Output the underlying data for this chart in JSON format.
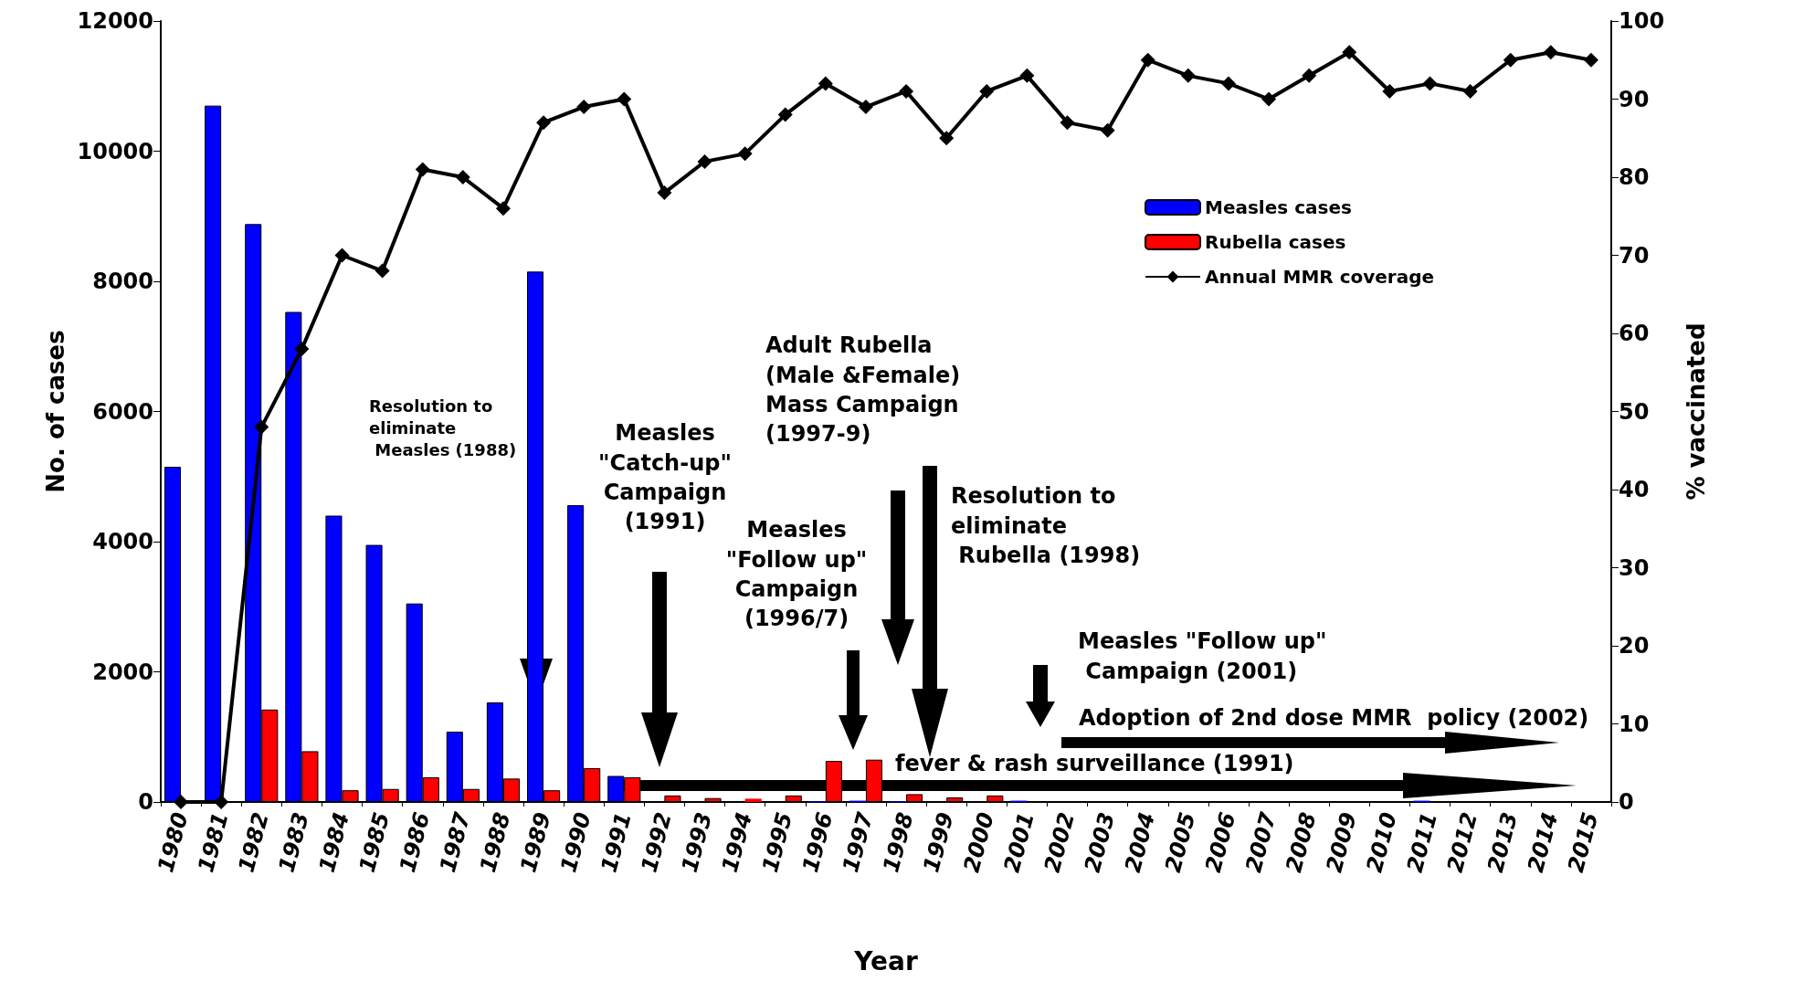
{
  "chart_data": {
    "type": "bar",
    "xlabel": "Year",
    "ylabel": "No. of cases",
    "y2label": "% vaccinated",
    "categories": [
      "1980",
      "1981",
      "1982",
      "1983",
      "1984",
      "1985",
      "1986",
      "1987",
      "1988",
      "1989",
      "1990",
      "1991",
      "1992",
      "1993",
      "1994",
      "1995",
      "1996",
      "1997",
      "1998",
      "1999",
      "2000",
      "2001",
      "2002",
      "2003",
      "2004",
      "2005",
      "2006",
      "2007",
      "2008",
      "2009",
      "2010",
      "2011",
      "2012",
      "2013",
      "2014",
      "2015"
    ],
    "series": [
      {
        "name": "Measles cases",
        "color": "#0000ff",
        "values": [
          5150,
          10700,
          8880,
          7530,
          4400,
          3950,
          3050,
          1080,
          1530,
          8150,
          4560,
          400,
          0,
          0,
          0,
          0,
          10,
          20,
          10,
          0,
          0,
          20,
          0,
          0,
          0,
          0,
          0,
          0,
          0,
          0,
          0,
          20,
          0,
          0,
          0,
          0
        ]
      },
      {
        "name": "Rubella cases",
        "color": "#ff0000",
        "values": [
          0,
          0,
          1420,
          780,
          180,
          200,
          380,
          200,
          360,
          180,
          520,
          380,
          100,
          60,
          50,
          100,
          630,
          650,
          120,
          70,
          100,
          0,
          0,
          0,
          0,
          0,
          0,
          0,
          0,
          0,
          0,
          0,
          0,
          0,
          0,
          0
        ]
      },
      {
        "name": "Annual MMR coverage",
        "type": "line",
        "axis": "y2",
        "color": "#000000",
        "marker": "diamond",
        "values": [
          0,
          0,
          48,
          58,
          70,
          68,
          81,
          80,
          76,
          87,
          89,
          90,
          78,
          82,
          83,
          88,
          92,
          89,
          91,
          85,
          91,
          93,
          87,
          86,
          95,
          93,
          92,
          90,
          93,
          96,
          91,
          92,
          91,
          95,
          96,
          95
        ]
      }
    ],
    "ylim": [
      0,
      12000
    ],
    "yticks": [
      0,
      2000,
      4000,
      6000,
      8000,
      10000,
      12000
    ],
    "y2lim": [
      0,
      100
    ],
    "y2ticks": [
      0,
      10,
      20,
      30,
      40,
      50,
      60,
      70,
      80,
      90,
      100
    ],
    "grid": false,
    "legend": "top right",
    "annotations": [
      "Resolution to\neliminate\n Measles (1988)",
      "Measles\n\"Catch-up\"\nCampaign\n(1991)",
      "Measles\n\"Follow up\"\nCampaign\n(1996/7)",
      "Adult Rubella\n(Male &Female)\nMass Campaign\n(1997-9)",
      "Resolution to\neliminate\n Rubella (1998)",
      "Measles \"Follow up\"\n Campaign (2001)",
      "Adoption of 2nd dose MMR  policy (2002)",
      "fever & rash surveillance (1991)"
    ]
  }
}
